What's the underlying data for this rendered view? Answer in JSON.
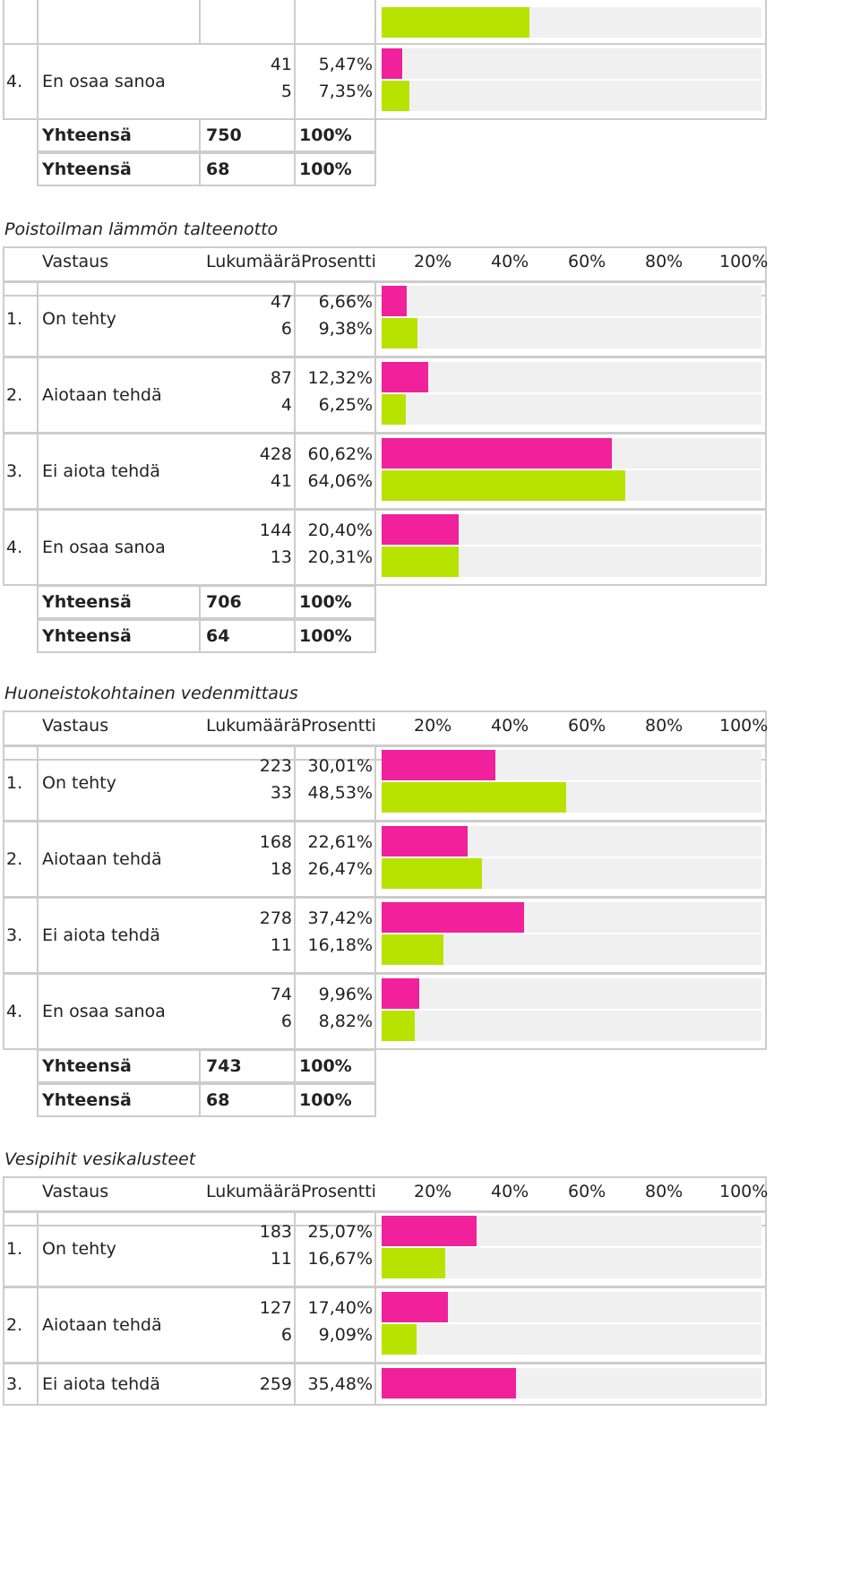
{
  "colors": {
    "magenta": "#f0219a",
    "green": "#b8e300",
    "track": "#f0f0f0",
    "border": "#cccccc"
  },
  "header": {
    "vastaus": "Vastaus",
    "lukumaara": "Lukumäärä",
    "prosentti": "Prosentti",
    "scale": [
      "20%",
      "40%",
      "60%",
      "80%",
      "100%"
    ]
  },
  "top_partial": {
    "row": {
      "num": "4.",
      "label": "En osaa sanoa",
      "count_a": "41",
      "pct_a": "5,47%",
      "count_b": "5",
      "pct_b": "7,35%",
      "frac_a": 0.0547,
      "frac_b": 0.0735
    },
    "prev_green_frac": 0.39,
    "total_a": {
      "label": "Yhteensä",
      "count": "750",
      "pct": "100%"
    },
    "total_b": {
      "label": "Yhteensä",
      "count": "68",
      "pct": "100%"
    }
  },
  "sections": [
    {
      "title": "Poistoilman lämmön talteenotto",
      "rows": [
        {
          "num": "1.",
          "label": "On tehty",
          "count_a": "47",
          "pct_a": "6,66%",
          "count_b": "6",
          "pct_b": "9,38%",
          "frac_a": 0.0666,
          "frac_b": 0.0938
        },
        {
          "num": "2.",
          "label": "Aiotaan tehdä",
          "count_a": "87",
          "pct_a": "12,32%",
          "count_b": "4",
          "pct_b": "6,25%",
          "frac_a": 0.1232,
          "frac_b": 0.0625
        },
        {
          "num": "3.",
          "label": "Ei aiota tehdä",
          "count_a": "428",
          "pct_a": "60,62%",
          "count_b": "41",
          "pct_b": "64,06%",
          "frac_a": 0.6062,
          "frac_b": 0.6406
        },
        {
          "num": "4.",
          "label": "En osaa sanoa",
          "count_a": "144",
          "pct_a": "20,40%",
          "count_b": "13",
          "pct_b": "20,31%",
          "frac_a": 0.204,
          "frac_b": 0.2031
        }
      ],
      "total_a": {
        "label": "Yhteensä",
        "count": "706",
        "pct": "100%"
      },
      "total_b": {
        "label": "Yhteensä",
        "count": "64",
        "pct": "100%"
      }
    },
    {
      "title": "Huoneistokohtainen vedenmittaus",
      "rows": [
        {
          "num": "1.",
          "label": "On tehty",
          "count_a": "223",
          "pct_a": "30,01%",
          "count_b": "33",
          "pct_b": "48,53%",
          "frac_a": 0.3001,
          "frac_b": 0.4853
        },
        {
          "num": "2.",
          "label": "Aiotaan tehdä",
          "count_a": "168",
          "pct_a": "22,61%",
          "count_b": "18",
          "pct_b": "26,47%",
          "frac_a": 0.2261,
          "frac_b": 0.2647
        },
        {
          "num": "3.",
          "label": "Ei aiota tehdä",
          "count_a": "278",
          "pct_a": "37,42%",
          "count_b": "11",
          "pct_b": "16,18%",
          "frac_a": 0.3742,
          "frac_b": 0.1618
        },
        {
          "num": "4.",
          "label": "En osaa sanoa",
          "count_a": "74",
          "pct_a": "9,96%",
          "count_b": "6",
          "pct_b": "8,82%",
          "frac_a": 0.0996,
          "frac_b": 0.0882
        }
      ],
      "total_a": {
        "label": "Yhteensä",
        "count": "743",
        "pct": "100%"
      },
      "total_b": {
        "label": "Yhteensä",
        "count": "68",
        "pct": "100%"
      }
    },
    {
      "title": "Vesipihit vesikalusteet",
      "rows": [
        {
          "num": "1.",
          "label": "On tehty",
          "count_a": "183",
          "pct_a": "25,07%",
          "count_b": "11",
          "pct_b": "16,67%",
          "frac_a": 0.2507,
          "frac_b": 0.1667
        },
        {
          "num": "2.",
          "label": "Aiotaan tehdä",
          "count_a": "127",
          "pct_a": "17,40%",
          "count_b": "6",
          "pct_b": "9,09%",
          "frac_a": 0.174,
          "frac_b": 0.0909
        }
      ],
      "partial_row": {
        "num": "3.",
        "label": "Ei aiota tehdä",
        "count_a": "259",
        "pct_a": "35,48%",
        "frac_a": 0.3548
      }
    }
  ]
}
